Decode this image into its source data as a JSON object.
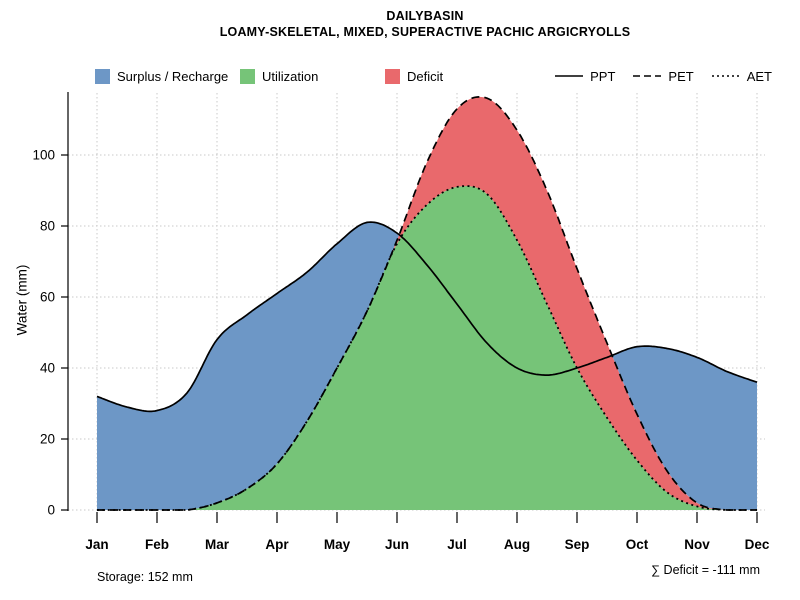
{
  "legend": {
    "areas": [
      {
        "label": "Surplus / Recharge",
        "color": "#6D97C6"
      },
      {
        "label": "Utilization",
        "color": "#76C478"
      },
      {
        "label": "Deficit",
        "color": "#E9696C"
      }
    ],
    "lines": [
      {
        "label": "PPT",
        "style": "solid"
      },
      {
        "label": "PET",
        "style": "dashed"
      },
      {
        "label": "AET",
        "style": "dotted"
      }
    ]
  },
  "chart_data": {
    "type": "area",
    "title": "DAILYBASIN",
    "subtitle": "LOAMY-SKELETAL, MIXED, SUPERACTIVE PACHIC ARGICRYOLLS",
    "ylabel": "Water (mm)",
    "ylim": [
      0,
      120
    ],
    "yticks": [
      0,
      20,
      40,
      60,
      80,
      100
    ],
    "grid": true,
    "legend_position": "top",
    "months": [
      "Jan",
      "Feb",
      "Mar",
      "Apr",
      "May",
      "Jun",
      "Jul",
      "Aug",
      "Sep",
      "Oct",
      "Nov",
      "Dec"
    ],
    "x_unit": "month index, 0 = Jan .. 11 = Dec, half-month resolution",
    "x": [
      0,
      0.5,
      1,
      1.5,
      2,
      2.5,
      3,
      3.5,
      4,
      4.5,
      5,
      5.5,
      6,
      6.5,
      7,
      7.5,
      8,
      8.5,
      9,
      9.5,
      10,
      10.5,
      11
    ],
    "series": [
      {
        "name": "PPT",
        "style": "solid",
        "values": [
          32,
          29,
          28,
          33,
          48,
          55,
          61,
          67,
          75,
          81,
          78,
          69,
          58,
          47,
          40,
          38,
          40,
          43,
          46,
          45.5,
          43,
          39,
          36
        ]
      },
      {
        "name": "PET",
        "style": "dashed",
        "values": [
          0,
          0,
          0,
          0,
          2,
          6,
          13,
          25,
          40,
          56,
          76,
          98,
          113,
          116,
          107,
          90,
          68,
          47,
          27,
          11,
          2,
          0,
          0
        ]
      },
      {
        "name": "AET",
        "style": "dotted",
        "values": [
          0,
          0,
          0,
          0,
          2,
          6,
          13,
          25,
          40,
          56,
          75,
          86,
          91,
          89,
          76,
          58,
          40,
          26,
          14,
          5,
          1,
          0,
          0
        ]
      }
    ],
    "areas": [
      {
        "name": "Surplus / Recharge",
        "color": "#6D97C6",
        "definition": "between PET and PPT where PPT > PET"
      },
      {
        "name": "Utilization",
        "color": "#76C478",
        "definition": "between 0 and AET"
      },
      {
        "name": "Deficit",
        "color": "#E9696C",
        "definition": "between AET and PET where PET > AET"
      }
    ],
    "annotations": {
      "storage": "Storage: 152 mm",
      "deficit_sum": "∑ Deficit = -111 mm"
    }
  }
}
